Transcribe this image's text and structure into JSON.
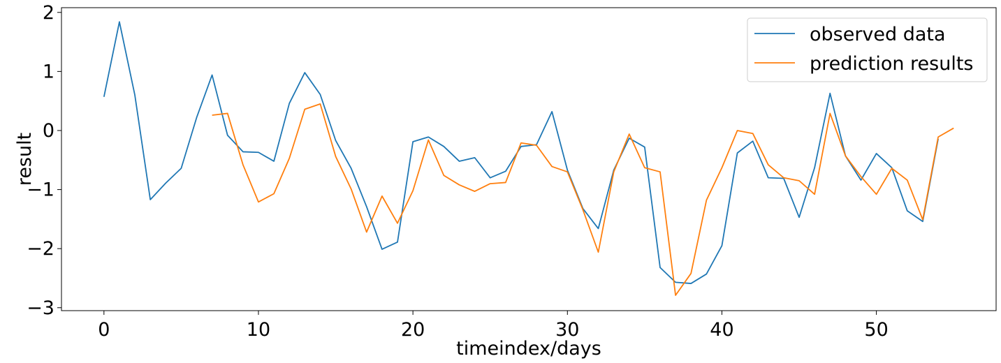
{
  "chart_data": {
    "type": "line",
    "title": "",
    "xlabel": "timeindex/days",
    "ylabel": "result",
    "xlim": [
      -2.75,
      57.75
    ],
    "ylim": [
      -3.05,
      2.08
    ],
    "xticks": [
      0,
      10,
      20,
      30,
      40,
      50
    ],
    "xtick_labels": [
      "0",
      "10",
      "20",
      "30",
      "40",
      "50"
    ],
    "yticks": [
      -3,
      -2,
      -1,
      0,
      1,
      2
    ],
    "ytick_labels": [
      "−3",
      "−2",
      "−1",
      "0",
      "1",
      "2"
    ],
    "grid": false,
    "legend_position": "top-right",
    "series": [
      {
        "name": "observed data",
        "color": "#1f77b4",
        "x": [
          0,
          1,
          2,
          3,
          4,
          5,
          6,
          7,
          8,
          9,
          10,
          11,
          12,
          13,
          14,
          15,
          16,
          17,
          18,
          19,
          20,
          21,
          22,
          23,
          24,
          25,
          26,
          27,
          28,
          29,
          30,
          31,
          32,
          33,
          34,
          35,
          36,
          37,
          38,
          39,
          40,
          41,
          42,
          43,
          44,
          45,
          46,
          47,
          48,
          49,
          50,
          51,
          52,
          53,
          54
        ],
        "y": [
          0.57,
          1.84,
          0.6,
          -1.17,
          -0.89,
          -0.64,
          0.22,
          0.94,
          -0.08,
          -0.36,
          -0.37,
          -0.52,
          0.46,
          0.98,
          0.61,
          -0.17,
          -0.64,
          -1.29,
          -2.01,
          -1.89,
          -0.19,
          -0.11,
          -0.27,
          -0.52,
          -0.46,
          -0.8,
          -0.69,
          -0.27,
          -0.24,
          0.32,
          -0.67,
          -1.32,
          -1.66,
          -0.67,
          -0.13,
          -0.28,
          -2.32,
          -2.57,
          -2.59,
          -2.43,
          -1.95,
          -0.38,
          -0.18,
          -0.8,
          -0.81,
          -1.47,
          -0.63,
          0.63,
          -0.43,
          -0.84,
          -0.39,
          -0.63,
          -1.36,
          -1.54,
          -0.14
        ]
      },
      {
        "name": "prediction results",
        "color": "#ff7f0e",
        "x": [
          7,
          8,
          9,
          10,
          11,
          12,
          13,
          14,
          15,
          16,
          17,
          18,
          19,
          20,
          21,
          22,
          23,
          24,
          25,
          26,
          27,
          28,
          29,
          30,
          31,
          32,
          33,
          34,
          35,
          36,
          37,
          38,
          39,
          40,
          41,
          42,
          43,
          44,
          45,
          46,
          47,
          48,
          49,
          50,
          51,
          52,
          53,
          54,
          55
        ],
        "y": [
          0.26,
          0.29,
          -0.58,
          -1.21,
          -1.07,
          -0.47,
          0.36,
          0.45,
          -0.44,
          -0.99,
          -1.72,
          -1.11,
          -1.57,
          -1.02,
          -0.16,
          -0.76,
          -0.92,
          -1.03,
          -0.9,
          -0.88,
          -0.21,
          -0.25,
          -0.61,
          -0.7,
          -1.34,
          -2.06,
          -0.7,
          -0.06,
          -0.63,
          -0.7,
          -2.79,
          -2.42,
          -1.18,
          -0.63,
          0.0,
          -0.05,
          -0.58,
          -0.8,
          -0.85,
          -1.08,
          0.29,
          -0.43,
          -0.78,
          -1.08,
          -0.64,
          -0.84,
          -1.51,
          -0.11,
          0.04
        ]
      }
    ]
  }
}
